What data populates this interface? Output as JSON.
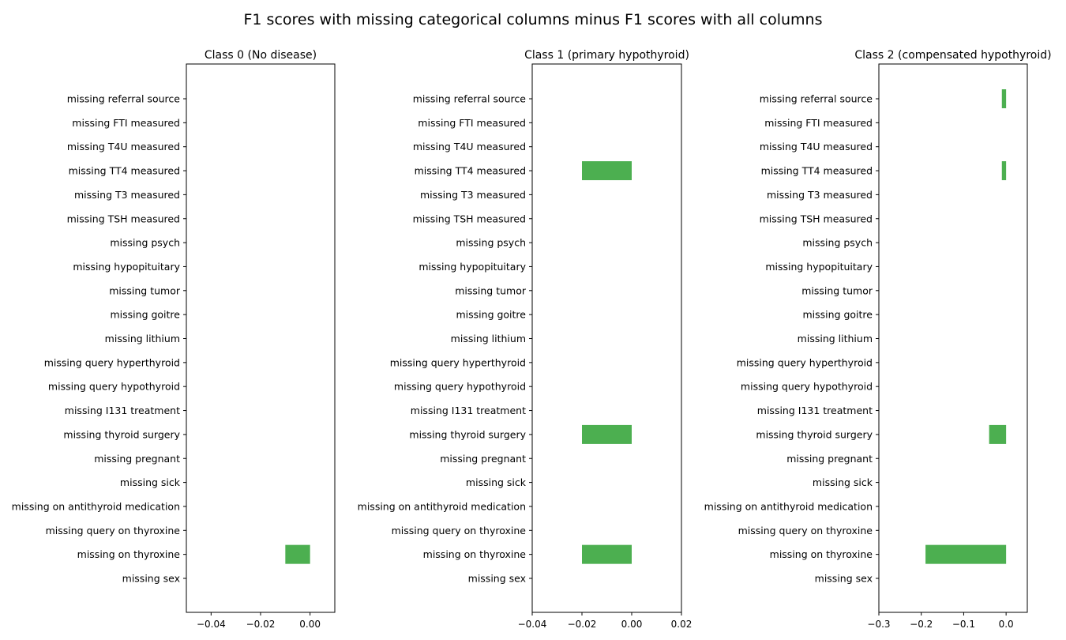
{
  "figure": {
    "title": "F1 scores with missing categorical columns minus F1 scores with all columns"
  },
  "colors": {
    "bar": "#4caf50"
  },
  "chart_data": [
    {
      "type": "bar",
      "orientation": "horizontal",
      "title": "Class 0 (No disease)",
      "categories": [
        "missing sex",
        "missing on thyroxine",
        "missing query on thyroxine",
        "missing on antithyroid medication",
        "missing sick",
        "missing pregnant",
        "missing thyroid surgery",
        "missing I131 treatment",
        "missing query hypothyroid",
        "missing query hyperthyroid",
        "missing lithium",
        "missing goitre",
        "missing tumor",
        "missing hypopituitary",
        "missing psych",
        "missing TSH measured",
        "missing T3 measured",
        "missing TT4 measured",
        "missing T4U measured",
        "missing FTI measured",
        "missing referral source"
      ],
      "values": [
        0,
        -0.01,
        0,
        0,
        0,
        0,
        0,
        0,
        0,
        0,
        0,
        0,
        0,
        0,
        0,
        0,
        0,
        0,
        0,
        0,
        0
      ],
      "xlim": [
        -0.05,
        0.01
      ],
      "xticks": [
        -0.04,
        -0.02,
        0.0
      ],
      "xtick_labels": [
        "−0.04",
        "−0.02",
        "0.00"
      ],
      "grid": false
    },
    {
      "type": "bar",
      "orientation": "horizontal",
      "title": "Class 1 (primary hypothyroid)",
      "categories": [
        "missing sex",
        "missing on thyroxine",
        "missing query on thyroxine",
        "missing on antithyroid medication",
        "missing sick",
        "missing pregnant",
        "missing thyroid surgery",
        "missing I131 treatment",
        "missing query hypothyroid",
        "missing query hyperthyroid",
        "missing lithium",
        "missing goitre",
        "missing tumor",
        "missing hypopituitary",
        "missing psych",
        "missing TSH measured",
        "missing T3 measured",
        "missing TT4 measured",
        "missing T4U measured",
        "missing FTI measured",
        "missing referral source"
      ],
      "values": [
        0,
        -0.02,
        0,
        0,
        0,
        0,
        -0.02,
        0,
        0,
        0,
        0,
        0,
        0,
        0,
        0,
        0,
        0,
        -0.02,
        0,
        0,
        0
      ],
      "xlim": [
        -0.04,
        0.02
      ],
      "xticks": [
        -0.04,
        -0.02,
        0.0,
        0.02
      ],
      "xtick_labels": [
        "−0.04",
        "−0.02",
        "0.00",
        "0.02"
      ],
      "grid": false
    },
    {
      "type": "bar",
      "orientation": "horizontal",
      "title": "Class 2 (compensated hypothyroid)",
      "categories": [
        "missing sex",
        "missing on thyroxine",
        "missing query on thyroxine",
        "missing on antithyroid medication",
        "missing sick",
        "missing pregnant",
        "missing thyroid surgery",
        "missing I131 treatment",
        "missing query hypothyroid",
        "missing query hyperthyroid",
        "missing lithium",
        "missing goitre",
        "missing tumor",
        "missing hypopituitary",
        "missing psych",
        "missing TSH measured",
        "missing T3 measured",
        "missing TT4 measured",
        "missing T4U measured",
        "missing FTI measured",
        "missing referral source"
      ],
      "values": [
        0,
        -0.19,
        0,
        0,
        0,
        0,
        -0.04,
        0,
        0,
        0,
        0,
        0,
        0,
        0,
        0,
        0,
        0,
        -0.01,
        0,
        0,
        -0.01
      ],
      "xlim": [
        -0.3,
        0.05
      ],
      "xticks": [
        -0.3,
        -0.2,
        -0.1,
        0.0
      ],
      "xtick_labels": [
        "−0.3",
        "−0.2",
        "−0.1",
        "0.0"
      ],
      "grid": false
    }
  ]
}
